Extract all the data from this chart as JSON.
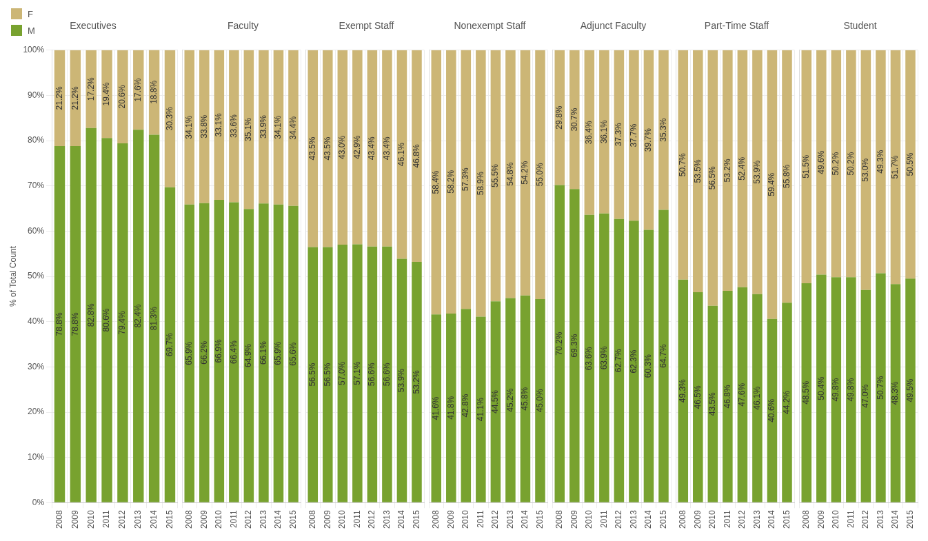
{
  "chart_data": [
    {
      "type": "bar",
      "stacked": true,
      "title": "Executives",
      "ylabel": "% of Total Count",
      "legend": "top left",
      "grid": true,
      "categories": [
        "2008",
        "2009",
        "2010",
        "2011",
        "2012",
        "2013",
        "2014",
        "2015"
      ],
      "ylim": [
        0,
        100
      ],
      "yticks": [
        {
          "value": 0,
          "label": "0%"
        },
        {
          "value": 10,
          "label": "10%"
        },
        {
          "value": 20,
          "label": "20%"
        },
        {
          "value": 30,
          "label": "30%"
        },
        {
          "value": 40,
          "label": "40%"
        },
        {
          "value": 50,
          "label": "50%"
        },
        {
          "value": 60,
          "label": "60%"
        },
        {
          "value": 70,
          "label": "70%"
        },
        {
          "value": 80,
          "label": "80%"
        },
        {
          "value": 90,
          "label": "90%"
        },
        {
          "value": 100,
          "label": "100%"
        }
      ],
      "series": [
        {
          "name": "M",
          "color": "#78a22f",
          "values": [
            78.8,
            78.8,
            82.8,
            80.6,
            79.4,
            82.4,
            81.3,
            69.7
          ],
          "value_labels": [
            "78.8%",
            "78.8%",
            "82.8%",
            "80.6%",
            "79.4%",
            "82.4%",
            "81.3%",
            "69.7%"
          ]
        },
        {
          "name": "F",
          "color": "#ccb676",
          "values": [
            21.2,
            21.2,
            17.2,
            19.4,
            20.6,
            17.6,
            18.8,
            30.3
          ],
          "value_labels": [
            "21.2%",
            "21.2%",
            "17.2%",
            "19.4%",
            "20.6%",
            "17.6%",
            "18.8%",
            "30.3%"
          ]
        }
      ]
    },
    {
      "type": "bar",
      "stacked": true,
      "title": "Faculty",
      "tick_labels": "x",
      "grid": true,
      "categories": [
        "2008",
        "2009",
        "2010",
        "2011",
        "2012",
        "2013",
        "2014",
        "2015"
      ],
      "ylim": [
        0,
        100
      ],
      "yticks": [
        {
          "value": 0,
          "label": null
        },
        {
          "value": 10,
          "label": null
        },
        {
          "value": 20,
          "label": null
        },
        {
          "value": 30,
          "label": null
        },
        {
          "value": 40,
          "label": null
        },
        {
          "value": 50,
          "label": null
        },
        {
          "value": 60,
          "label": null
        },
        {
          "value": 70,
          "label": null
        },
        {
          "value": 80,
          "label": null
        },
        {
          "value": 90,
          "label": null
        },
        {
          "value": 100,
          "label": null
        }
      ],
      "series": [
        {
          "color": "#78a22f",
          "values": [
            65.9,
            66.2,
            66.9,
            66.4,
            64.9,
            66.1,
            65.9,
            65.6
          ],
          "value_labels": [
            "65.9%",
            "66.2%",
            "66.9%",
            "66.4%",
            "64.9%",
            "66.1%",
            "65.9%",
            "65.6%"
          ]
        },
        {
          "color": "#ccb676",
          "values": [
            34.1,
            33.8,
            33.1,
            33.6,
            35.1,
            33.9,
            34.1,
            34.4
          ],
          "value_labels": [
            "34.1%",
            "33.8%",
            "33.1%",
            "33.6%",
            "35.1%",
            "33.9%",
            "34.1%",
            "34.4%"
          ]
        }
      ]
    },
    {
      "type": "bar",
      "stacked": true,
      "title": "Exempt Staff",
      "tick_labels": "x",
      "grid": true,
      "categories": [
        "2008",
        "2009",
        "2010",
        "2011",
        "2012",
        "2013",
        "2014",
        "2015"
      ],
      "ylim": [
        0,
        100
      ],
      "yticks": [
        {
          "value": 0,
          "label": null
        },
        {
          "value": 10,
          "label": null
        },
        {
          "value": 20,
          "label": null
        },
        {
          "value": 30,
          "label": null
        },
        {
          "value": 40,
          "label": null
        },
        {
          "value": 50,
          "label": null
        },
        {
          "value": 60,
          "label": null
        },
        {
          "value": 70,
          "label": null
        },
        {
          "value": 80,
          "label": null
        },
        {
          "value": 90,
          "label": null
        },
        {
          "value": 100,
          "label": null
        }
      ],
      "series": [
        {
          "color": "#78a22f",
          "values": [
            56.5,
            56.5,
            57.0,
            57.1,
            56.6,
            56.6,
            53.9,
            53.2
          ],
          "value_labels": [
            "56.5%",
            "56.5%",
            "57.0%",
            "57.1%",
            "56.6%",
            "56.6%",
            "53.9%",
            "53.2%"
          ]
        },
        {
          "color": "#ccb676",
          "values": [
            43.5,
            43.5,
            43.0,
            42.9,
            43.4,
            43.4,
            46.1,
            46.8
          ],
          "value_labels": [
            "43.5%",
            "43.5%",
            "43.0%",
            "42.9%",
            "43.4%",
            "43.4%",
            "46.1%",
            "46.8%"
          ]
        }
      ]
    },
    {
      "type": "bar",
      "stacked": true,
      "title": "Nonexempt Staff",
      "tick_labels": "x",
      "grid": true,
      "categories": [
        "2008",
        "2009",
        "2010",
        "2011",
        "2012",
        "2013",
        "2014",
        "2015"
      ],
      "ylim": [
        0,
        100
      ],
      "yticks": [
        {
          "value": 0,
          "label": null
        },
        {
          "value": 10,
          "label": null
        },
        {
          "value": 20,
          "label": null
        },
        {
          "value": 30,
          "label": null
        },
        {
          "value": 40,
          "label": null
        },
        {
          "value": 50,
          "label": null
        },
        {
          "value": 60,
          "label": null
        },
        {
          "value": 70,
          "label": null
        },
        {
          "value": 80,
          "label": null
        },
        {
          "value": 90,
          "label": null
        },
        {
          "value": 100,
          "label": null
        }
      ],
      "series": [
        {
          "color": "#78a22f",
          "values": [
            41.6,
            41.8,
            42.8,
            41.1,
            44.5,
            45.2,
            45.8,
            45.0
          ],
          "value_labels": [
            "41.6%",
            "41.8%",
            "42.8%",
            "41.1%",
            "44.5%",
            "45.2%",
            "45.8%",
            "45.0%"
          ]
        },
        {
          "color": "#ccb676",
          "values": [
            58.4,
            58.2,
            57.3,
            58.9,
            55.5,
            54.8,
            54.2,
            55.0
          ],
          "value_labels": [
            "58.4%",
            "58.2%",
            "57.3%",
            "58.9%",
            "55.5%",
            "54.8%",
            "54.2%",
            "55.0%"
          ]
        }
      ]
    },
    {
      "type": "bar",
      "stacked": true,
      "title": "Adjunct Faculty",
      "tick_labels": "x",
      "grid": true,
      "categories": [
        "2008",
        "2009",
        "2010",
        "2011",
        "2012",
        "2013",
        "2014",
        "2015"
      ],
      "ylim": [
        0,
        100
      ],
      "yticks": [
        {
          "value": 0,
          "label": null
        },
        {
          "value": 10,
          "label": null
        },
        {
          "value": 20,
          "label": null
        },
        {
          "value": 30,
          "label": null
        },
        {
          "value": 40,
          "label": null
        },
        {
          "value": 50,
          "label": null
        },
        {
          "value": 60,
          "label": null
        },
        {
          "value": 70,
          "label": null
        },
        {
          "value": 80,
          "label": null
        },
        {
          "value": 90,
          "label": null
        },
        {
          "value": 100,
          "label": null
        }
      ],
      "series": [
        {
          "color": "#78a22f",
          "values": [
            70.2,
            69.3,
            63.6,
            63.9,
            62.7,
            62.3,
            60.3,
            64.7
          ],
          "value_labels": [
            "70.2%",
            "69.3%",
            "63.6%",
            "63.9%",
            "62.7%",
            "62.3%",
            "60.3%",
            "64.7%"
          ]
        },
        {
          "color": "#ccb676",
          "values": [
            29.8,
            30.7,
            36.4,
            36.1,
            37.3,
            37.7,
            39.7,
            35.3
          ],
          "value_labels": [
            "29.8%",
            "30.7%",
            "36.4%",
            "36.1%",
            "37.3%",
            "37.7%",
            "39.7%",
            "35.3%"
          ]
        }
      ]
    },
    {
      "type": "bar",
      "stacked": true,
      "title": "Part-Time Staff",
      "tick_labels": "x",
      "grid": true,
      "categories": [
        "2008",
        "2009",
        "2010",
        "2011",
        "2012",
        "2013",
        "2014",
        "2015"
      ],
      "ylim": [
        0,
        100
      ],
      "yticks": [
        {
          "value": 0,
          "label": null
        },
        {
          "value": 10,
          "label": null
        },
        {
          "value": 20,
          "label": null
        },
        {
          "value": 30,
          "label": null
        },
        {
          "value": 40,
          "label": null
        },
        {
          "value": 50,
          "label": null
        },
        {
          "value": 60,
          "label": null
        },
        {
          "value": 70,
          "label": null
        },
        {
          "value": 80,
          "label": null
        },
        {
          "value": 90,
          "label": null
        },
        {
          "value": 100,
          "label": null
        }
      ],
      "series": [
        {
          "color": "#78a22f",
          "values": [
            49.3,
            46.5,
            43.5,
            46.8,
            47.6,
            46.1,
            40.6,
            44.2
          ],
          "value_labels": [
            "49.3%",
            "46.5%",
            "43.5%",
            "46.8%",
            "47.6%",
            "46.1%",
            "40.6%",
            "44.2%"
          ]
        },
        {
          "color": "#ccb676",
          "values": [
            50.7,
            53.5,
            56.5,
            53.2,
            52.4,
            53.9,
            59.4,
            55.8
          ],
          "value_labels": [
            "50.7%",
            "53.5%",
            "56.5%",
            "53.2%",
            "52.4%",
            "53.9%",
            "59.4%",
            "55.8%"
          ]
        }
      ]
    },
    {
      "type": "bar",
      "stacked": true,
      "title": "Student",
      "tick_labels": "x",
      "grid": true,
      "categories": [
        "2008",
        "2009",
        "2010",
        "2011",
        "2012",
        "2013",
        "2014",
        "2015"
      ],
      "ylim": [
        0,
        100
      ],
      "yticks": [
        {
          "value": 0,
          "label": null
        },
        {
          "value": 10,
          "label": null
        },
        {
          "value": 20,
          "label": null
        },
        {
          "value": 30,
          "label": null
        },
        {
          "value": 40,
          "label": null
        },
        {
          "value": 50,
          "label": null
        },
        {
          "value": 60,
          "label": null
        },
        {
          "value": 70,
          "label": null
        },
        {
          "value": 80,
          "label": null
        },
        {
          "value": 90,
          "label": null
        },
        {
          "value": 100,
          "label": null
        }
      ],
      "series": [
        {
          "color": "#78a22f",
          "values": [
            48.5,
            50.4,
            49.8,
            49.8,
            47.0,
            50.7,
            48.3,
            49.5
          ],
          "value_labels": [
            "48.5%",
            "50.4%",
            "49.8%",
            "49.8%",
            "47.0%",
            "50.7%",
            "48.3%",
            "49.5%"
          ]
        },
        {
          "color": "#ccb676",
          "values": [
            51.5,
            49.6,
            50.2,
            50.2,
            53.0,
            49.3,
            51.7,
            50.5
          ],
          "value_labels": [
            "51.5%",
            "49.6%",
            "50.2%",
            "50.2%",
            "53.0%",
            "49.3%",
            "51.7%",
            "50.5%"
          ]
        }
      ]
    }
  ]
}
